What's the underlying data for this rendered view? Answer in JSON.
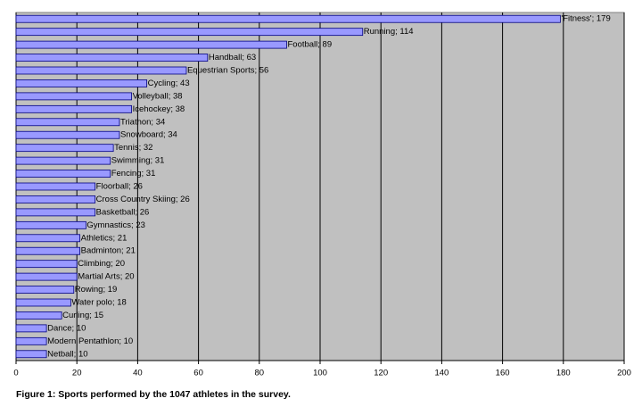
{
  "chart_data": {
    "type": "barh",
    "caption": "Figure 1: Sports performed by the 1047 athletes in the survey.",
    "values": [
      179,
      114,
      89,
      63,
      56,
      43,
      38,
      38,
      34,
      34,
      32,
      31,
      31,
      26,
      26,
      26,
      23,
      21,
      21,
      20,
      20,
      19,
      18,
      15,
      10,
      10,
      10
    ],
    "value_labels": [
      "'Fitness'; 179",
      "Running; 114",
      "Football; 89",
      "Handball; 63",
      "Equestrian Sports; 56",
      "Cycling; 43",
      "Volleyball; 38",
      "Icehockey; 38",
      "Triathon; 34",
      "Snowboard; 34",
      "Tennis; 32",
      "Swimming; 31",
      "Fencing; 31",
      "Floorball; 26",
      "Cross Country Skiing; 26",
      "Basketball; 26",
      "Gymnastics; 23",
      "Athletics; 21",
      "Badminton; 21",
      "Climbing; 20",
      "Martial Arts; 20",
      "Rowing; 19",
      "Water polo; 18",
      "Curling; 15",
      "Dance; 10",
      "Modern Pentathlon; 10",
      "Netball; 10"
    ],
    "color": "#9999ff",
    "background": "#c0c0c0",
    "xlim": [
      0,
      200
    ],
    "xticks": [
      0,
      20,
      40,
      60,
      80,
      100,
      120,
      140,
      160,
      180,
      200
    ],
    "grid": true
  }
}
